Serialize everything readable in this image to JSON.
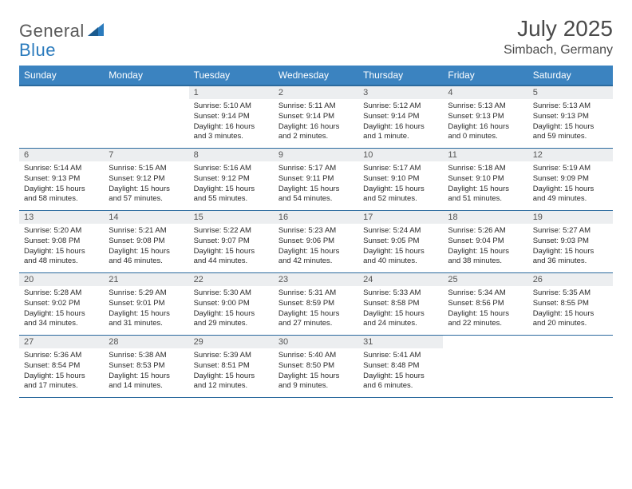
{
  "logo": {
    "text1": "General",
    "text2": "Blue"
  },
  "title": "July 2025",
  "location": "Simbach, Germany",
  "colors": {
    "header_bg": "#3b83c0",
    "header_border": "#2b6a9e",
    "daynum_bg": "#eceef0",
    "row_border": "#2b6a9e"
  },
  "weekdays": [
    "Sunday",
    "Monday",
    "Tuesday",
    "Wednesday",
    "Thursday",
    "Friday",
    "Saturday"
  ],
  "weeks": [
    [
      null,
      null,
      {
        "n": "1",
        "sr": "5:10 AM",
        "ss": "9:14 PM",
        "dl": "16 hours and 3 minutes."
      },
      {
        "n": "2",
        "sr": "5:11 AM",
        "ss": "9:14 PM",
        "dl": "16 hours and 2 minutes."
      },
      {
        "n": "3",
        "sr": "5:12 AM",
        "ss": "9:14 PM",
        "dl": "16 hours and 1 minute."
      },
      {
        "n": "4",
        "sr": "5:13 AM",
        "ss": "9:13 PM",
        "dl": "16 hours and 0 minutes."
      },
      {
        "n": "5",
        "sr": "5:13 AM",
        "ss": "9:13 PM",
        "dl": "15 hours and 59 minutes."
      }
    ],
    [
      {
        "n": "6",
        "sr": "5:14 AM",
        "ss": "9:13 PM",
        "dl": "15 hours and 58 minutes."
      },
      {
        "n": "7",
        "sr": "5:15 AM",
        "ss": "9:12 PM",
        "dl": "15 hours and 57 minutes."
      },
      {
        "n": "8",
        "sr": "5:16 AM",
        "ss": "9:12 PM",
        "dl": "15 hours and 55 minutes."
      },
      {
        "n": "9",
        "sr": "5:17 AM",
        "ss": "9:11 PM",
        "dl": "15 hours and 54 minutes."
      },
      {
        "n": "10",
        "sr": "5:17 AM",
        "ss": "9:10 PM",
        "dl": "15 hours and 52 minutes."
      },
      {
        "n": "11",
        "sr": "5:18 AM",
        "ss": "9:10 PM",
        "dl": "15 hours and 51 minutes."
      },
      {
        "n": "12",
        "sr": "5:19 AM",
        "ss": "9:09 PM",
        "dl": "15 hours and 49 minutes."
      }
    ],
    [
      {
        "n": "13",
        "sr": "5:20 AM",
        "ss": "9:08 PM",
        "dl": "15 hours and 48 minutes."
      },
      {
        "n": "14",
        "sr": "5:21 AM",
        "ss": "9:08 PM",
        "dl": "15 hours and 46 minutes."
      },
      {
        "n": "15",
        "sr": "5:22 AM",
        "ss": "9:07 PM",
        "dl": "15 hours and 44 minutes."
      },
      {
        "n": "16",
        "sr": "5:23 AM",
        "ss": "9:06 PM",
        "dl": "15 hours and 42 minutes."
      },
      {
        "n": "17",
        "sr": "5:24 AM",
        "ss": "9:05 PM",
        "dl": "15 hours and 40 minutes."
      },
      {
        "n": "18",
        "sr": "5:26 AM",
        "ss": "9:04 PM",
        "dl": "15 hours and 38 minutes."
      },
      {
        "n": "19",
        "sr": "5:27 AM",
        "ss": "9:03 PM",
        "dl": "15 hours and 36 minutes."
      }
    ],
    [
      {
        "n": "20",
        "sr": "5:28 AM",
        "ss": "9:02 PM",
        "dl": "15 hours and 34 minutes."
      },
      {
        "n": "21",
        "sr": "5:29 AM",
        "ss": "9:01 PM",
        "dl": "15 hours and 31 minutes."
      },
      {
        "n": "22",
        "sr": "5:30 AM",
        "ss": "9:00 PM",
        "dl": "15 hours and 29 minutes."
      },
      {
        "n": "23",
        "sr": "5:31 AM",
        "ss": "8:59 PM",
        "dl": "15 hours and 27 minutes."
      },
      {
        "n": "24",
        "sr": "5:33 AM",
        "ss": "8:58 PM",
        "dl": "15 hours and 24 minutes."
      },
      {
        "n": "25",
        "sr": "5:34 AM",
        "ss": "8:56 PM",
        "dl": "15 hours and 22 minutes."
      },
      {
        "n": "26",
        "sr": "5:35 AM",
        "ss": "8:55 PM",
        "dl": "15 hours and 20 minutes."
      }
    ],
    [
      {
        "n": "27",
        "sr": "5:36 AM",
        "ss": "8:54 PM",
        "dl": "15 hours and 17 minutes."
      },
      {
        "n": "28",
        "sr": "5:38 AM",
        "ss": "8:53 PM",
        "dl": "15 hours and 14 minutes."
      },
      {
        "n": "29",
        "sr": "5:39 AM",
        "ss": "8:51 PM",
        "dl": "15 hours and 12 minutes."
      },
      {
        "n": "30",
        "sr": "5:40 AM",
        "ss": "8:50 PM",
        "dl": "15 hours and 9 minutes."
      },
      {
        "n": "31",
        "sr": "5:41 AM",
        "ss": "8:48 PM",
        "dl": "15 hours and 6 minutes."
      },
      null,
      null
    ]
  ],
  "labels": {
    "sunrise": "Sunrise:",
    "sunset": "Sunset:",
    "daylight": "Daylight:"
  }
}
